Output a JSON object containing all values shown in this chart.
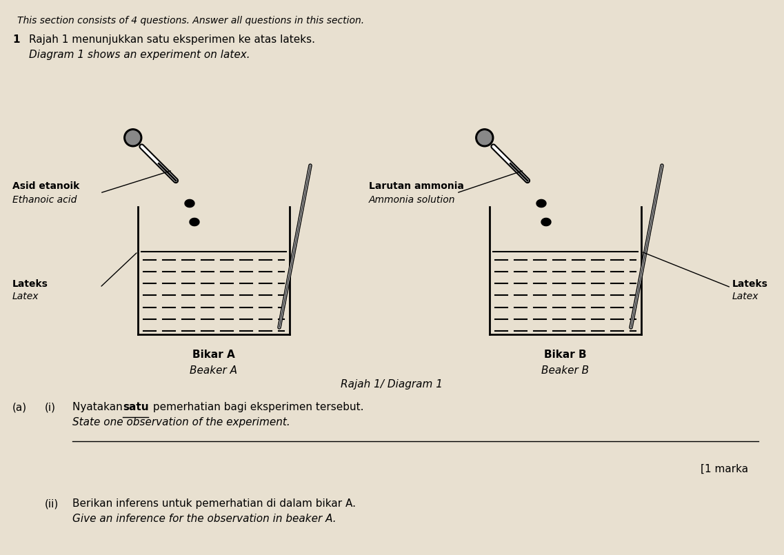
{
  "bg_color": "#d8d0c0",
  "page_bg": "#e8e0d0",
  "header_text": "This section consists of 4 questions. Answer all questions in this section.",
  "question_num": "1",
  "question_malay": "Rajah 1 menunjukkan satu eksperimen ke atas lateks.",
  "question_english": "Diagram 1 shows an experiment on latex.",
  "label_A_malay": "Asid etanoik",
  "label_A_english": "Ethanoic acid",
  "label_B_malay": "Larutan ammonia",
  "label_B_english": "Ammonia solution",
  "latex_malay": "Lateks",
  "latex_english": "Latex",
  "beaker_A_malay": "Bikar A",
  "beaker_A_english": "Beaker A",
  "beaker_B_malay": "Bikar B",
  "beaker_B_english": "Beaker B",
  "diagram_label": "Rajah 1/ Diagram 1",
  "part_a_i_malay": "(a)   (i)  Nyatakan ",
  "part_a_i_bold": "satu",
  "part_a_i_malay2": " pemerhatian bagi eksperimen tersebut.",
  "part_a_i_english": "State one observation of the experiment.",
  "marks": "[1 marka",
  "part_a_ii_malay": "(ii)  Berikan inferens untuk pemerhatian di dalam bikar A.",
  "part_a_ii_english": "Give an inference for the observation in beaker A."
}
